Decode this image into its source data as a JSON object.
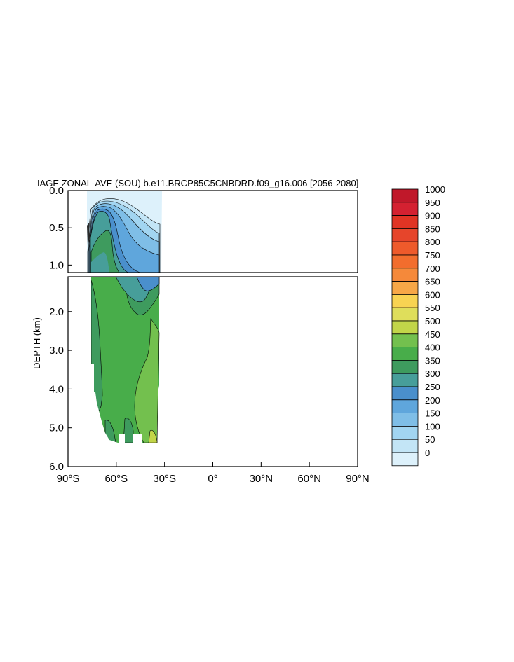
{
  "chart_data": {
    "type": "heatmap",
    "title": "IAGE ZONAL-AVE (SOU) b.e11.BRCP85C5CNBDRD.f09_g16.006 [2056-2080]",
    "ylabel": "DEPTH (km)",
    "xlabel": "",
    "x_ticks": [
      "90°S",
      "60°S",
      "30°S",
      "0°",
      "30°N",
      "60°N",
      "90°N"
    ],
    "x_tick_values": [
      -90,
      -60,
      -30,
      0,
      30,
      60,
      90
    ],
    "xlim": [
      -90,
      90
    ],
    "upper_panel": {
      "ylim": [
        0,
        1.1
      ],
      "y_ticks": [
        "0.0",
        "0.5",
        "1.0"
      ],
      "y_tick_values": [
        0,
        0.5,
        1.0
      ]
    },
    "lower_panel": {
      "ylim": [
        1.1,
        6.0
      ],
      "y_ticks": [
        "2.0",
        "3.0",
        "4.0",
        "5.0",
        "6.0"
      ],
      "y_tick_values": [
        2,
        3,
        4,
        5,
        6
      ]
    },
    "colorbar": {
      "labels": [
        "1000",
        "950",
        "900",
        "850",
        "800",
        "750",
        "700",
        "650",
        "600",
        "550",
        "500",
        "450",
        "400",
        "350",
        "300",
        "250",
        "200",
        "150",
        "100",
        "50",
        "0"
      ],
      "colors": [
        "#c0182a",
        "#d42131",
        "#e03424",
        "#e6452b",
        "#ee5a2b",
        "#f26d2d",
        "#f5893a",
        "#f7a747",
        "#f8d352",
        "#dfde5b",
        "#c2d549",
        "#73c04e",
        "#48ad4a",
        "#3e9b5e",
        "#479e9a",
        "#4a8fcc",
        "#5fa6dc",
        "#7fbee7",
        "#a2d5f1",
        "#c3e5f6",
        "#ddf1fb"
      ]
    },
    "grid": false,
    "legend": "colorbar-right"
  }
}
